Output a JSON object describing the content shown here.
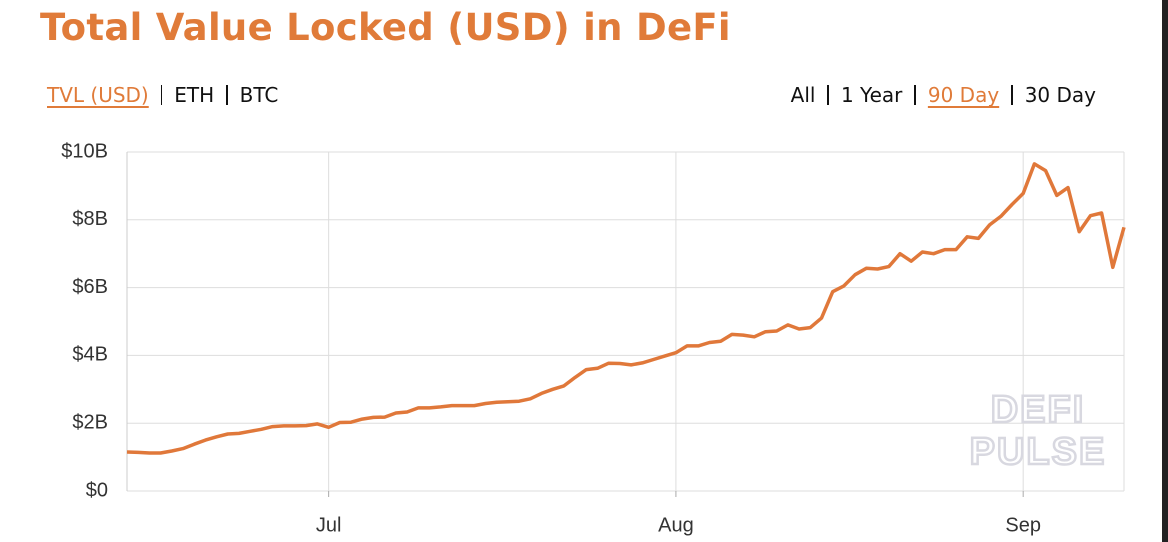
{
  "title": "Total Value Locked (USD) in DeFi",
  "unit_tabs": {
    "items": [
      "TVL (USD)",
      "ETH",
      "BTC"
    ],
    "selected": 0
  },
  "range_tabs": {
    "items": [
      "All",
      "1 Year",
      "90 Day",
      "30 Day"
    ],
    "selected": 2
  },
  "chart_data": {
    "type": "line",
    "color": "#e0783a",
    "watermark": [
      "DEFI",
      "PULSE"
    ],
    "grid": true,
    "categories": [
      null,
      null,
      null,
      null,
      null,
      null,
      null,
      null,
      null,
      null,
      null,
      null,
      null,
      null,
      null,
      null,
      null,
      null,
      "Jul",
      null,
      null,
      null,
      null,
      null,
      null,
      null,
      null,
      null,
      null,
      null,
      null,
      null,
      null,
      null,
      null,
      null,
      null,
      null,
      null,
      null,
      null,
      null,
      null,
      null,
      null,
      null,
      null,
      null,
      null,
      "Aug",
      null,
      null,
      null,
      null,
      null,
      null,
      null,
      null,
      null,
      null,
      null,
      null,
      null,
      null,
      null,
      null,
      null,
      null,
      null,
      null,
      null,
      null,
      null,
      null,
      null,
      null,
      null,
      null,
      null,
      null,
      "Sep",
      null,
      null,
      null,
      null,
      null,
      null,
      null,
      null,
      null
    ],
    "values": [
      1.15,
      1.14,
      1.12,
      1.12,
      1.18,
      1.25,
      1.38,
      1.5,
      1.6,
      1.68,
      1.7,
      1.76,
      1.82,
      1.9,
      1.92,
      1.92,
      1.93,
      1.98,
      1.88,
      2.02,
      2.03,
      2.12,
      2.17,
      2.18,
      2.3,
      2.33,
      2.45,
      2.45,
      2.48,
      2.52,
      2.52,
      2.52,
      2.58,
      2.62,
      2.63,
      2.65,
      2.72,
      2.88,
      3.0,
      3.1,
      3.35,
      3.58,
      3.62,
      3.77,
      3.76,
      3.72,
      3.78,
      3.88,
      3.98,
      4.08,
      4.28,
      4.28,
      4.38,
      4.42,
      4.62,
      4.6,
      4.55,
      4.7,
      4.72,
      4.9,
      4.78,
      4.82,
      5.1,
      5.88,
      6.05,
      6.38,
      6.57,
      6.55,
      6.62,
      7.0,
      6.78,
      7.05,
      7.0,
      7.12,
      7.12,
      7.5,
      7.45,
      7.85,
      8.1,
      8.45,
      8.78,
      9.65,
      9.45,
      8.72,
      8.95,
      7.65,
      8.12,
      8.2,
      6.6,
      7.78
    ],
    "ylim": [
      0,
      10
    ],
    "yticks": [
      {
        "value": 0,
        "label": "$0"
      },
      {
        "value": 2,
        "label": "$2B"
      },
      {
        "value": 4,
        "label": "$4B"
      },
      {
        "value": 6,
        "label": "$6B"
      },
      {
        "value": 8,
        "label": "$8B"
      },
      {
        "value": 10,
        "label": "$10B"
      }
    ]
  }
}
